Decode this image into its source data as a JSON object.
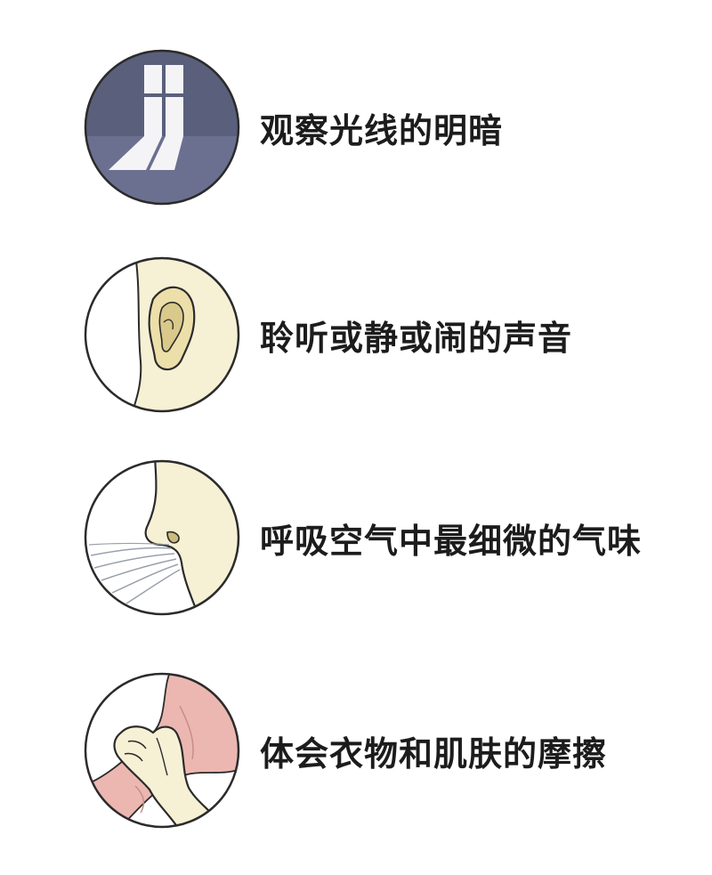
{
  "items": [
    {
      "label": "观察光线的明暗",
      "icon": "window-light-icon"
    },
    {
      "label": "聆听或静或闹的声音",
      "icon": "ear-icon"
    },
    {
      "label": "呼吸空气中最细微的气味",
      "icon": "nose-breath-icon"
    },
    {
      "label": "体会衣物和肌肤的摩擦",
      "icon": "hand-fabric-icon"
    }
  ],
  "colors": {
    "window_bg": "#5a5f7c",
    "skin": "#f6f0d5",
    "skin_shadow": "#e7dcac",
    "fabric": "#ecb7b1",
    "outline": "#2b2b2b"
  }
}
